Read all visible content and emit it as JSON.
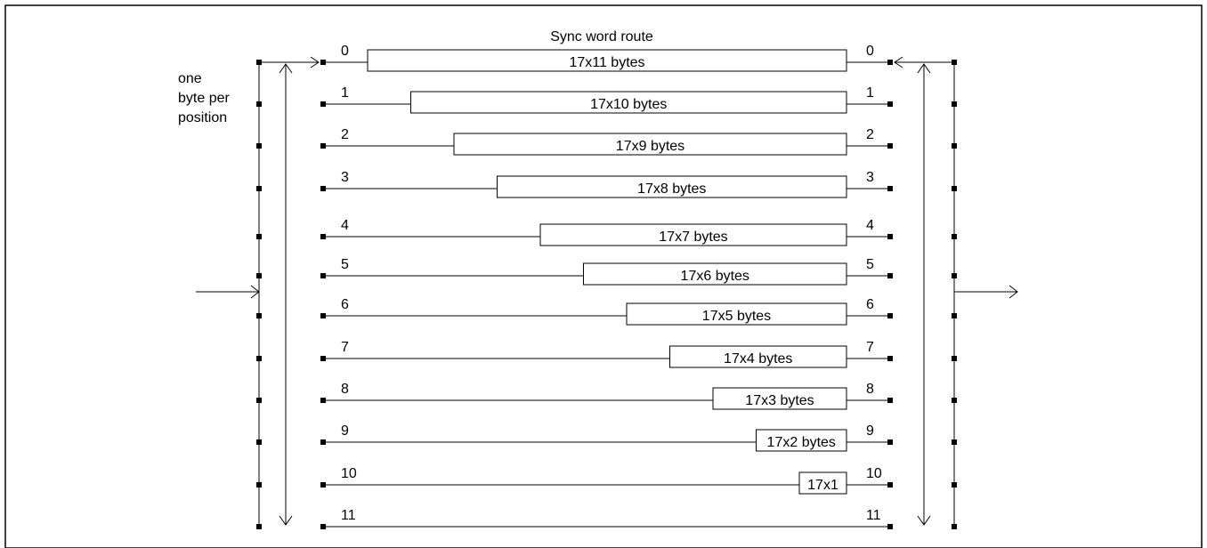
{
  "title": "Sync word route",
  "side_note": [
    "one",
    "byte per",
    "position"
  ],
  "branches": [
    {
      "index": "0",
      "label": "17x11 bytes"
    },
    {
      "index": "1",
      "label": "17x10 bytes"
    },
    {
      "index": "2",
      "label": "17x9 bytes"
    },
    {
      "index": "3",
      "label": "17x8 bytes"
    },
    {
      "index": "4",
      "label": "17x7 bytes"
    },
    {
      "index": "5",
      "label": "17x6 bytes"
    },
    {
      "index": "6",
      "label": "17x5 bytes"
    },
    {
      "index": "7",
      "label": "17x4 bytes"
    },
    {
      "index": "8",
      "label": "17x3 bytes"
    },
    {
      "index": "9",
      "label": "17x2 bytes"
    },
    {
      "index": "10",
      "label": "17x1"
    },
    {
      "index": "11",
      "label": ""
    }
  ]
}
